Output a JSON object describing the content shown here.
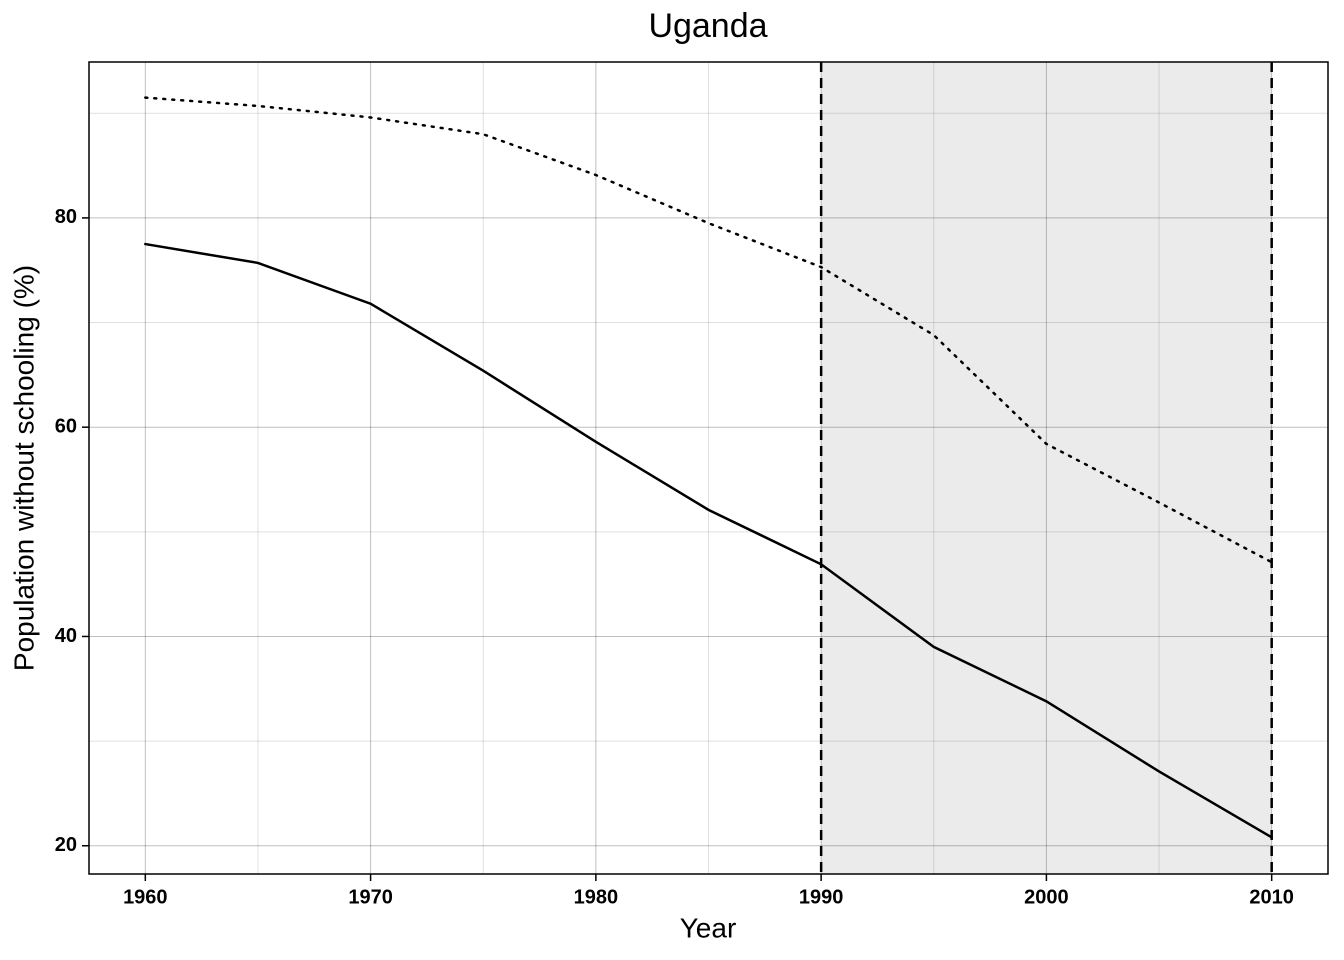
{
  "chart_data": {
    "type": "line",
    "title": "Uganda",
    "x_label": "Year",
    "y_label": "Population without schooling (%)",
    "x": [
      1960,
      1965,
      1970,
      1975,
      1980,
      1985,
      1990,
      1995,
      2000,
      2005,
      2010
    ],
    "series": [
      {
        "color": "#000000",
        "dash": "solid",
        "values": [
          77.5,
          75.7,
          71.8,
          65.4,
          58.6,
          52.1,
          46.9,
          39.0,
          33.8,
          27.1,
          20.8
        ]
      },
      {
        "color": "#000000",
        "dash": "dotted",
        "values": [
          91.5,
          90.7,
          89.6,
          88.0,
          84.1,
          79.5,
          75.3,
          68.8,
          58.4,
          52.8,
          47.1
        ]
      }
    ],
    "xlim": [
      1957.5,
      2012.5
    ],
    "ylim": [
      17.3,
      94.9
    ],
    "xticks": [
      1960,
      1970,
      1980,
      1990,
      2000,
      2010
    ],
    "yticks": [
      20,
      40,
      60,
      80
    ],
    "x_minor_ticks": [
      1965,
      1975,
      1985,
      1995,
      2005
    ],
    "y_minor_ticks": [
      30,
      50,
      70,
      90
    ],
    "grid": true,
    "shaded_range": [
      1990,
      2010
    ],
    "shade_color": "#ebebeb"
  }
}
